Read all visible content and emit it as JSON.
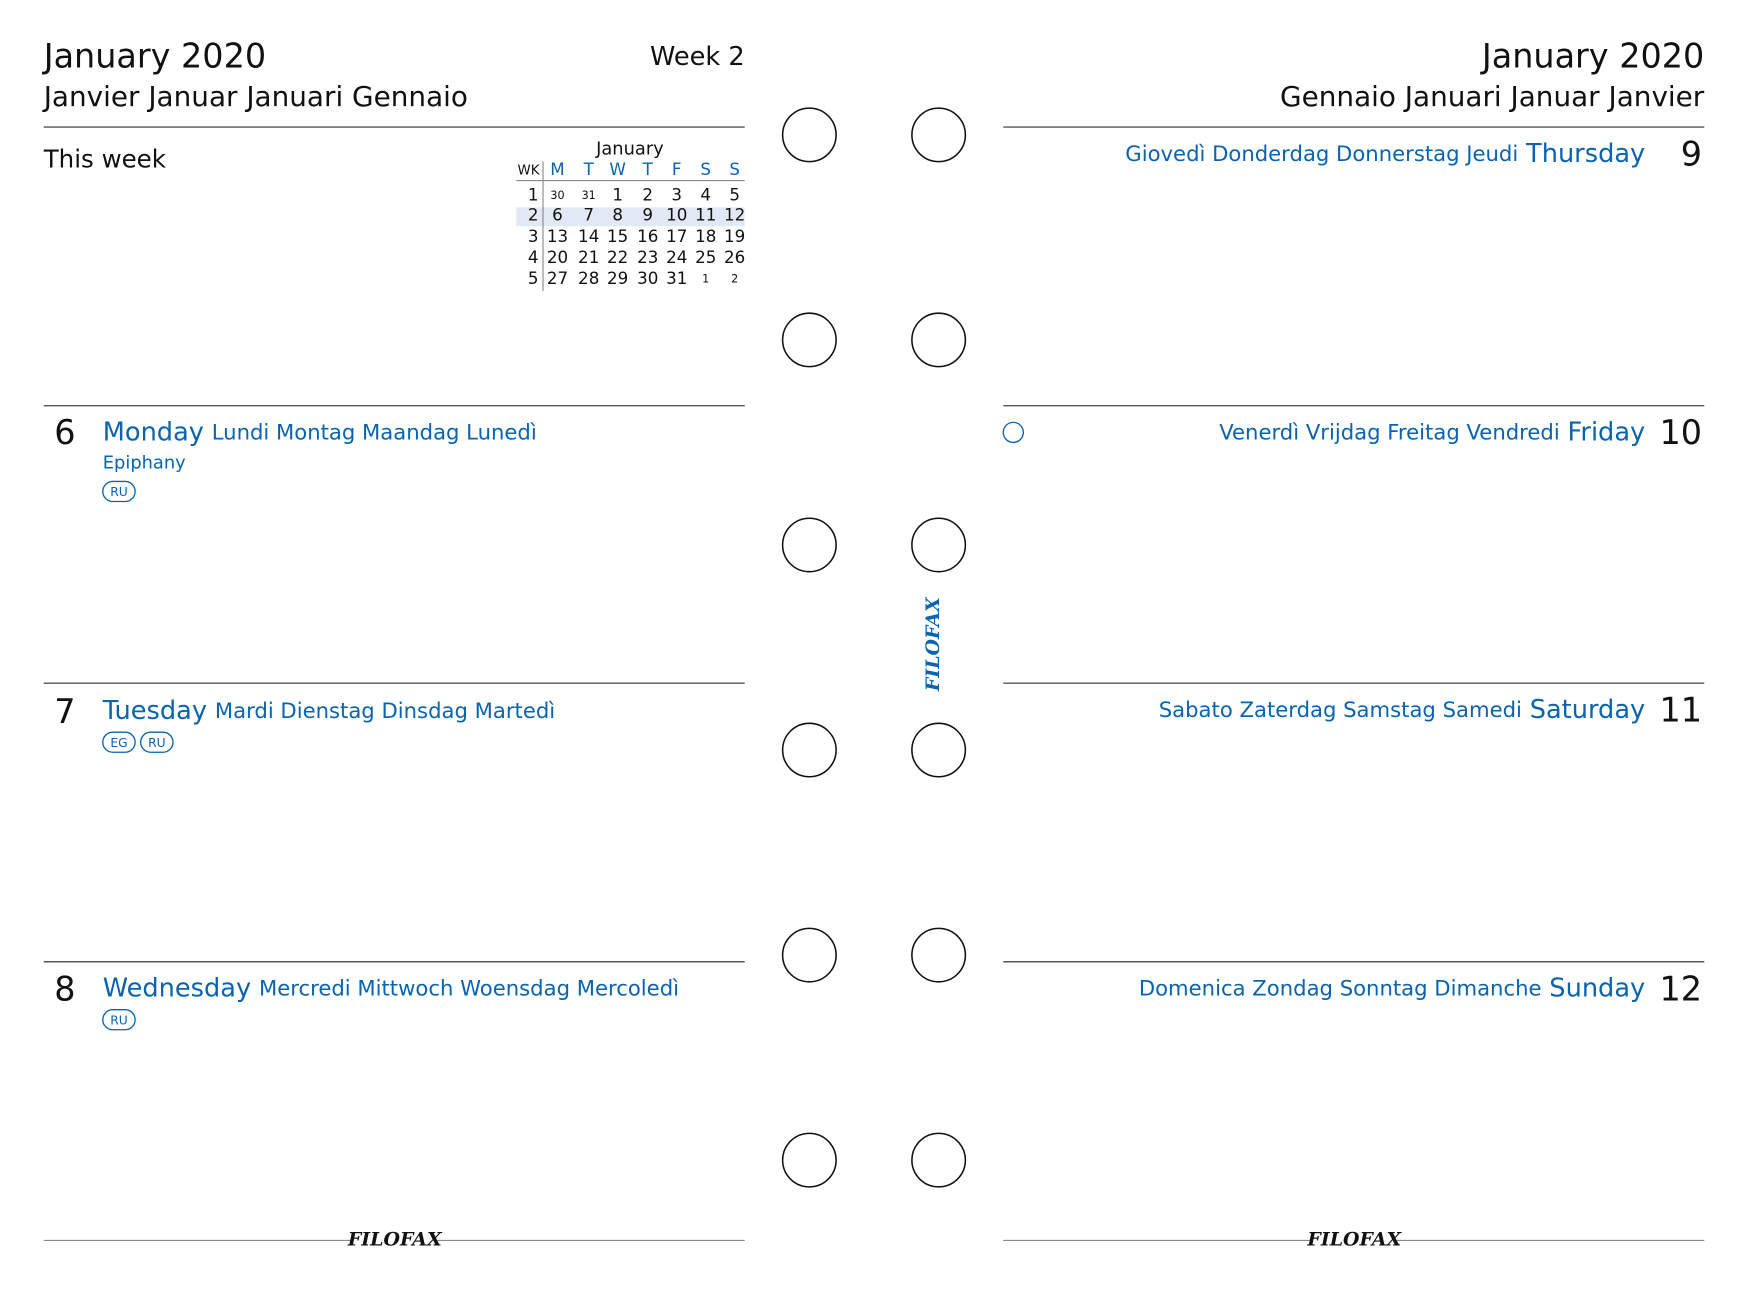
{
  "left": {
    "title": "January 2020",
    "subtitle": "Janvier Januar Januari Gennaio",
    "week": "Week 2",
    "this_week": "This week",
    "mini_calendar": {
      "month": "January",
      "header": [
        "WK",
        "M",
        "T",
        "W",
        "T",
        "F",
        "S",
        "S"
      ],
      "rows": [
        [
          1,
          30,
          31,
          1,
          2,
          3,
          4,
          5
        ],
        [
          2,
          6,
          7,
          8,
          9,
          10,
          11,
          12
        ],
        [
          3,
          13,
          14,
          15,
          16,
          17,
          18,
          19
        ],
        [
          4,
          20,
          21,
          22,
          23,
          24,
          25,
          26
        ],
        [
          5,
          27,
          28,
          29,
          30,
          31,
          1,
          2
        ]
      ]
    },
    "days": [
      {
        "number": 6,
        "name": "Monday",
        "translations": "Lundi Montag Maandag Lunedì",
        "note": "Epiphany",
        "badges": [
          "RU"
        ]
      },
      {
        "number": 7,
        "name": "Tuesday",
        "translations": "Mardi Dienstag Dinsdag Martedì",
        "badges": [
          "EG",
          "RU"
        ]
      },
      {
        "number": 8,
        "name": "Wednesday",
        "translations": "Mercredi Mittwoch Woensdag Mercoledì",
        "badges": [
          "RU"
        ]
      }
    ]
  },
  "right": {
    "title": "January 2020",
    "subtitle": "Gennaio Januari Januar Janvier",
    "days": [
      {
        "number": 9,
        "name": "Thursday",
        "translations": "Giovedì Donderdag Donnerstag Jeudi"
      },
      {
        "number": 10,
        "name": "Friday",
        "translations": "Venerdì Vrijdag Freitag Vendredi"
      },
      {
        "number": 11,
        "name": "Saturday",
        "translations": "Sabato Zaterdag Samstag Samedi"
      },
      {
        "number": 12,
        "name": "Sunday",
        "translations": "Domenica Zondag Sonntag Dimanche"
      }
    ]
  },
  "brand": "FILOFAX"
}
